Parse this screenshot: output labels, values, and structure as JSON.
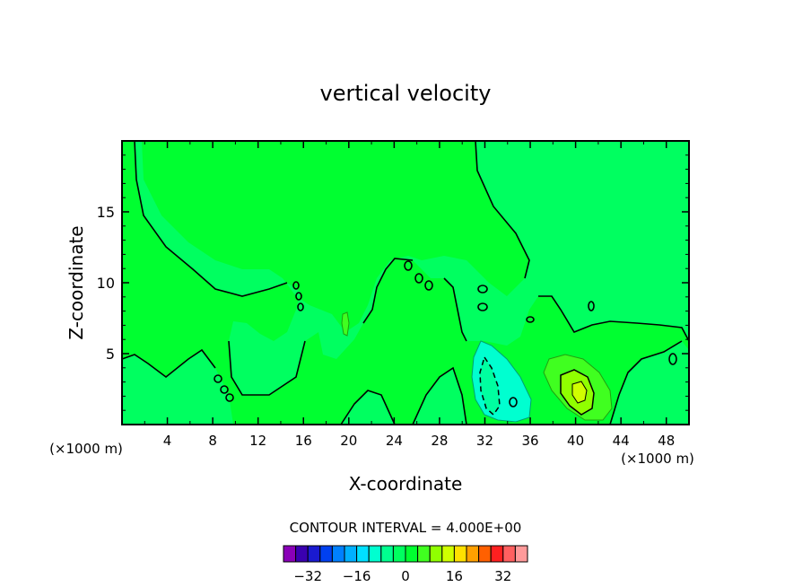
{
  "chart_data": {
    "type": "contour",
    "title": "vertical velocity",
    "xlabel": "X-coordinate",
    "ylabel": "Z-coordinate",
    "x_unit_left": "(×1000 m)",
    "x_unit_right": "(×1000 m)",
    "xlim": [
      0,
      50
    ],
    "ylim": [
      0,
      20
    ],
    "xticks": [
      4,
      8,
      12,
      16,
      20,
      24,
      28,
      32,
      36,
      40,
      44,
      48
    ],
    "yticks": [
      5,
      10,
      15
    ],
    "contour_interval_label": "CONTOUR INTERVAL = 4.000E+00",
    "colorbar": {
      "levels": [
        -36,
        -32,
        -28,
        -24,
        -20,
        -16,
        -12,
        -8,
        -4,
        0,
        4,
        8,
        12,
        16,
        20,
        24,
        28,
        32,
        36
      ],
      "colors": [
        "#8a00b8",
        "#3a00b0",
        "#1a1ad0",
        "#0040f0",
        "#0080ff",
        "#00b0ff",
        "#00e0ff",
        "#00ffd0",
        "#00ff90",
        "#00ff60",
        "#00ff30",
        "#40ff20",
        "#90ff00",
        "#d0ff00",
        "#ffe000",
        "#ffa000",
        "#ff6000",
        "#ff2020",
        "#ff6060",
        "#ff9a9a"
      ],
      "tick_labels": [
        "−32",
        "−16",
        "0",
        "16",
        "32"
      ],
      "tick_values": [
        -32,
        -16,
        0,
        16,
        32
      ]
    },
    "features": [
      {
        "kind": "updraft",
        "x": 40,
        "z": 2.2,
        "peak": 12
      },
      {
        "kind": "downdraft",
        "x": 32.5,
        "z": 2.5,
        "peak": -12
      }
    ]
  }
}
